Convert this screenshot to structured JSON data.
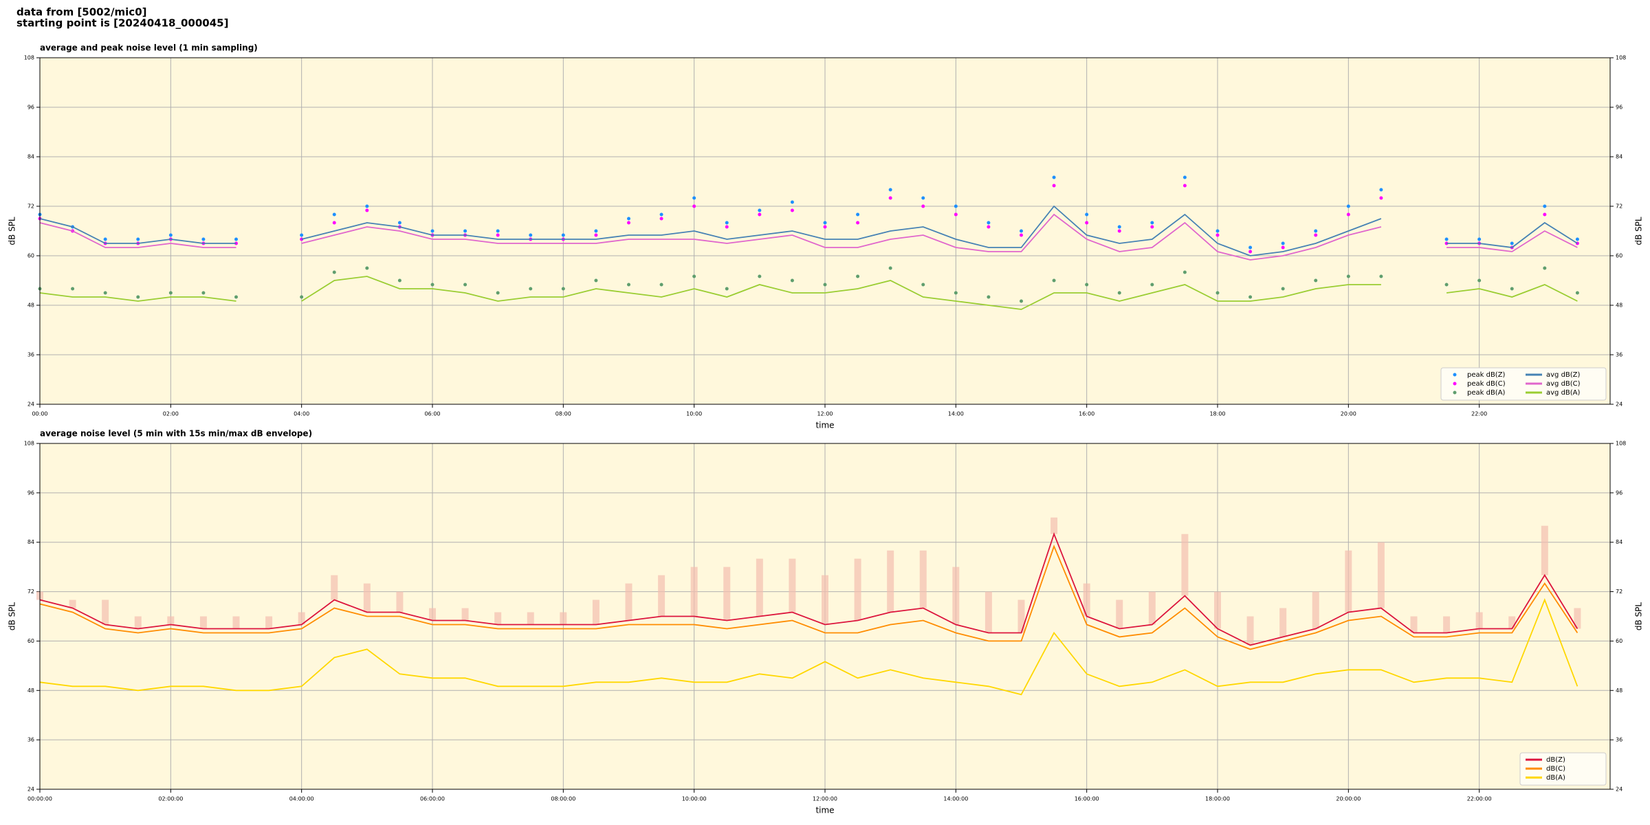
{
  "header": [
    "data from [5002/mic0]",
    "starting point is [20240418_000045]"
  ],
  "chart_data": [
    {
      "type": "line",
      "title": "average and peak noise level (1 min sampling)",
      "xlabel": "time",
      "ylabel": "dB SPL",
      "y2label": "dB SPL",
      "background": "#fff8dc",
      "grid": true,
      "legend": "lower right",
      "legend_columns": 2,
      "xlim": [
        "00:00",
        "24:00"
      ],
      "xticks": [
        "00:00",
        "02:00",
        "04:00",
        "06:00",
        "08:00",
        "10:00",
        "12:00",
        "14:00",
        "16:00",
        "18:00",
        "20:00",
        "22:00"
      ],
      "ylim": [
        24,
        108
      ],
      "yticks": [
        24,
        36,
        48,
        60,
        72,
        84,
        96,
        108
      ],
      "y2lim": [
        24,
        108
      ],
      "y2ticks": [
        24,
        36,
        48,
        60,
        72,
        84,
        96,
        108
      ],
      "x": [
        "00:00",
        "00:30",
        "01:00",
        "01:30",
        "02:00",
        "02:30",
        "03:00",
        "03:30",
        "04:00",
        "04:30",
        "05:00",
        "05:30",
        "06:00",
        "06:30",
        "07:00",
        "07:30",
        "08:00",
        "08:30",
        "09:00",
        "09:30",
        "10:00",
        "10:30",
        "11:00",
        "11:30",
        "12:00",
        "12:30",
        "13:00",
        "13:30",
        "14:00",
        "14:30",
        "15:00",
        "15:30",
        "16:00",
        "16:30",
        "17:00",
        "17:30",
        "18:00",
        "18:30",
        "19:00",
        "19:30",
        "20:00",
        "20:30",
        "21:00",
        "21:30",
        "22:00",
        "22:30",
        "23:00",
        "23:30"
      ],
      "series": [
        {
          "name": "peak dB(Z)",
          "type": "scatter",
          "color": "#1e90ff",
          "values": [
            70,
            67,
            64,
            64,
            65,
            64,
            64,
            null,
            65,
            70,
            72,
            68,
            66,
            66,
            66,
            65,
            65,
            66,
            69,
            70,
            74,
            68,
            71,
            73,
            68,
            70,
            76,
            74,
            72,
            68,
            66,
            79,
            70,
            67,
            68,
            79,
            66,
            62,
            63,
            66,
            72,
            76,
            null,
            64,
            64,
            63,
            72,
            64
          ]
        },
        {
          "name": "peak dB(C)",
          "type": "scatter",
          "color": "#ff00ff",
          "values": [
            69,
            66,
            63,
            63,
            64,
            63,
            63,
            null,
            64,
            68,
            71,
            67,
            65,
            65,
            65,
            64,
            64,
            65,
            68,
            69,
            72,
            67,
            70,
            71,
            67,
            68,
            74,
            72,
            70,
            67,
            65,
            77,
            68,
            66,
            67,
            77,
            65,
            61,
            62,
            65,
            70,
            74,
            null,
            63,
            63,
            62,
            70,
            63
          ]
        },
        {
          "name": "peak dB(A)",
          "type": "scatter",
          "color": "#5f9e6e",
          "values": [
            52,
            52,
            51,
            50,
            51,
            51,
            50,
            null,
            50,
            56,
            57,
            54,
            53,
            53,
            51,
            52,
            52,
            54,
            53,
            53,
            55,
            52,
            55,
            54,
            53,
            55,
            57,
            53,
            51,
            50,
            49,
            54,
            53,
            51,
            53,
            56,
            51,
            50,
            52,
            54,
            55,
            55,
            null,
            53,
            54,
            52,
            57,
            51
          ]
        },
        {
          "name": "avg dB(Z)",
          "color": "#4682b4",
          "values": [
            69,
            67,
            63,
            63,
            64,
            63,
            63,
            null,
            64,
            66,
            68,
            67,
            65,
            65,
            64,
            64,
            64,
            64,
            65,
            65,
            66,
            64,
            65,
            66,
            64,
            64,
            66,
            67,
            64,
            62,
            62,
            72,
            65,
            63,
            64,
            70,
            63,
            60,
            61,
            63,
            66,
            69,
            null,
            63,
            63,
            62,
            68,
            63
          ]
        },
        {
          "name": "avg dB(C)",
          "color": "#e066cc",
          "values": [
            68,
            66,
            62,
            62,
            63,
            62,
            62,
            null,
            63,
            65,
            67,
            66,
            64,
            64,
            63,
            63,
            63,
            63,
            64,
            64,
            64,
            63,
            64,
            65,
            62,
            62,
            64,
            65,
            62,
            61,
            61,
            70,
            64,
            61,
            62,
            68,
            61,
            59,
            60,
            62,
            65,
            67,
            null,
            62,
            62,
            61,
            66,
            62
          ]
        },
        {
          "name": "avg dB(A)",
          "color": "#9acd32",
          "values": [
            51,
            50,
            50,
            49,
            50,
            50,
            49,
            null,
            49,
            54,
            55,
            52,
            52,
            51,
            49,
            50,
            50,
            52,
            51,
            50,
            52,
            50,
            53,
            51,
            51,
            52,
            54,
            50,
            49,
            48,
            47,
            51,
            51,
            49,
            51,
            53,
            49,
            49,
            50,
            52,
            53,
            53,
            null,
            51,
            52,
            50,
            53,
            49
          ]
        }
      ]
    },
    {
      "type": "line",
      "title": "average noise level (5 min with 15s min/max dB envelope)",
      "xlabel": "time",
      "ylabel": "dB SPL",
      "y2label": "dB SPL",
      "background": "#fff8dc",
      "grid": true,
      "legend": "lower right",
      "legend_columns": 1,
      "xlim": [
        "00:00",
        "24:00"
      ],
      "xticks": [
        {
          "value": "00:00",
          "label": "00:00:00"
        },
        {
          "value": "02:00",
          "label": "02:00:00"
        },
        {
          "value": "04:00",
          "label": "04:00:00"
        },
        {
          "value": "06:00",
          "label": "06:00:00"
        },
        {
          "value": "08:00",
          "label": "08:00:00"
        },
        {
          "value": "10:00",
          "label": "10:00:00"
        },
        {
          "value": "12:00",
          "label": "12:00:00"
        },
        {
          "value": "14:00",
          "label": "14:00:00"
        },
        {
          "value": "16:00",
          "label": "16:00:00"
        },
        {
          "value": "18:00",
          "label": "18:00:00"
        },
        {
          "value": "20:00",
          "label": "20:00:00"
        },
        {
          "value": "22:00",
          "label": "22:00:00"
        }
      ],
      "ylim": [
        24,
        108
      ],
      "yticks": [
        24,
        36,
        48,
        60,
        72,
        84,
        96,
        108
      ],
      "y2lim": [
        24,
        108
      ],
      "y2ticks": [
        24,
        36,
        48,
        60,
        72,
        84,
        96,
        108
      ],
      "x": [
        "00:00",
        "00:30",
        "01:00",
        "01:30",
        "02:00",
        "02:30",
        "03:00",
        "03:30",
        "04:00",
        "04:30",
        "05:00",
        "05:30",
        "06:00",
        "06:30",
        "07:00",
        "07:30",
        "08:00",
        "08:30",
        "09:00",
        "09:30",
        "10:00",
        "10:30",
        "11:00",
        "11:30",
        "12:00",
        "12:30",
        "13:00",
        "13:30",
        "14:00",
        "14:30",
        "15:00",
        "15:30",
        "16:00",
        "16:30",
        "17:00",
        "17:30",
        "18:00",
        "18:30",
        "19:00",
        "19:30",
        "20:00",
        "20:30",
        "21:00",
        "21:30",
        "22:00",
        "22:30",
        "23:00",
        "23:30"
      ],
      "envelope": {
        "color": "#f4c0b0",
        "max": [
          72,
          70,
          70,
          66,
          66,
          66,
          66,
          66,
          67,
          76,
          74,
          72,
          68,
          68,
          67,
          67,
          67,
          70,
          74,
          76,
          78,
          78,
          80,
          80,
          76,
          80,
          82,
          82,
          78,
          72,
          70,
          90,
          74,
          70,
          72,
          86,
          72,
          66,
          68,
          72,
          82,
          84,
          66,
          66,
          67,
          66,
          88,
          68
        ]
      },
      "series": [
        {
          "name": "dB(Z)",
          "color": "#dc143c",
          "values": [
            70,
            68,
            64,
            63,
            64,
            63,
            63,
            63,
            64,
            70,
            67,
            67,
            65,
            65,
            64,
            64,
            64,
            64,
            65,
            66,
            66,
            65,
            66,
            67,
            64,
            65,
            67,
            68,
            64,
            62,
            62,
            86,
            66,
            63,
            64,
            71,
            63,
            59,
            61,
            63,
            67,
            68,
            62,
            62,
            63,
            63,
            76,
            63
          ]
        },
        {
          "name": "dB(C)",
          "color": "#ff8c00",
          "values": [
            69,
            67,
            63,
            62,
            63,
            62,
            62,
            62,
            63,
            68,
            66,
            66,
            64,
            64,
            63,
            63,
            63,
            63,
            64,
            64,
            64,
            63,
            64,
            65,
            62,
            62,
            64,
            65,
            62,
            60,
            60,
            83,
            64,
            61,
            62,
            68,
            61,
            58,
            60,
            62,
            65,
            66,
            61,
            61,
            62,
            62,
            74,
            62
          ]
        },
        {
          "name": "dB(A)",
          "color": "#ffd700",
          "values": [
            50,
            49,
            49,
            48,
            49,
            49,
            48,
            48,
            49,
            56,
            58,
            52,
            51,
            51,
            49,
            49,
            49,
            50,
            50,
            51,
            50,
            50,
            52,
            51,
            55,
            51,
            53,
            51,
            50,
            49,
            47,
            62,
            52,
            49,
            50,
            53,
            49,
            50,
            50,
            52,
            53,
            53,
            50,
            51,
            51,
            50,
            70,
            49
          ]
        }
      ]
    }
  ]
}
